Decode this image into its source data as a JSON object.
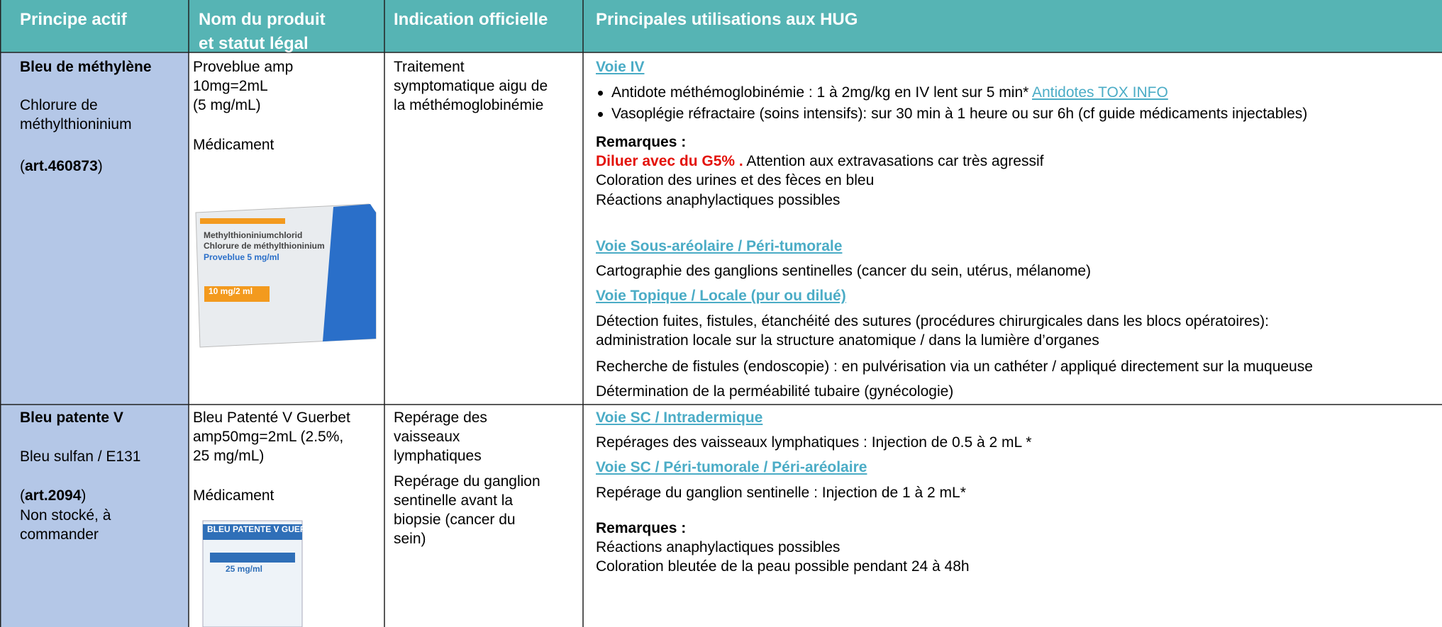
{
  "header": [
    "Principe actif",
    [
      "Nom du produit",
      "et statut légal"
    ],
    "Indication officielle",
    "Principales utilisations aux HUG"
  ],
  "rows": [
    {
      "active": {
        "name": "Bleu de méthylène",
        "synonym": [
          "Chlorure de",
          "méthylthioninium"
        ],
        "article": {
          "open": "(",
          "code": "art.460873",
          "close": ")"
        }
      },
      "product": {
        "lines": [
          "Proveblue amp",
          "10mg=2mL",
          "(5 mg/mL)"
        ],
        "status": "Médicament",
        "image_texts": [
          "Methylthioniniumchlorid",
          "Chlorure de méthylthioninium",
          "Proveblue 5 mg/ml",
          "10 mg/2 ml"
        ]
      },
      "indication": [
        [
          "Traitement",
          "symptomatique aigu de",
          "la méthémoglobinémie"
        ]
      ],
      "uses": {
        "iv": {
          "heading": "Voie IV",
          "bullets": [
            {
              "text": "Antidote méthémoglobinémie : 1 à 2mg/kg en IV lent sur 5 min* ",
              "link": "Antidotes TOX INFO"
            },
            {
              "text": "Vasoplégie réfractaire (soins intensifs): sur 30 min à 1 heure ou sur 6h (cf guide médicaments injectables)"
            }
          ]
        },
        "remarks": {
          "title": "Remarques :",
          "warning": "Diluer avec du G5% .",
          "warning_rest": " Attention aux extravasations car très agressif",
          "lines": [
            "Coloration des urines et des fèces en bleu",
            "Réactions anaphylactiques possibles"
          ]
        },
        "subareolar": {
          "heading": "Voie Sous-aréolaire / Péri-tumorale",
          "text": "Cartographie des ganglions sentinelles (cancer du sein, utérus, mélanome)"
        },
        "topical": {
          "heading": "Voie Topique / Locale (pur ou dilué)",
          "lines": [
            "Détection fuites, fistules, étanchéité des sutures (procédures chirurgicales dans les blocs opératoires):",
            "administration locale sur la structure anatomique / dans la lumière d’organes",
            "Recherche de fistules (endoscopie) : en pulvérisation via un cathéter / appliqué directement sur la muqueuse",
            "Détermination de la perméabilité tubaire (gynécologie)"
          ]
        }
      }
    },
    {
      "active": {
        "name": "Bleu patente V",
        "synonym": [
          "Bleu sulfan / E131"
        ],
        "article": {
          "open": "(",
          "code": "art.2094",
          "close": ")"
        },
        "note": [
          "Non stocké, à",
          "commander"
        ]
      },
      "product": {
        "lines": [
          "Bleu Patenté V Guerbet",
          "amp50mg=2mL (2.5%,",
          "25 mg/mL)"
        ],
        "status": "Médicament",
        "image_texts": [
          "BLEU PATENTE V GUERBET",
          "25 mg/ml"
        ]
      },
      "indication": [
        [
          "Repérage des",
          "vaisseaux",
          "lymphatiques"
        ],
        [
          "Repérage du ganglion",
          "sentinelle avant la",
          "biopsie (cancer du",
          "sein)"
        ]
      ],
      "uses": {
        "sc": {
          "heading": "Voie SC / Intradermique",
          "text": "Repérages des vaisseaux lymphatiques : Injection de 0.5 à 2 mL *"
        },
        "sc_peri": {
          "heading": "Voie SC / Péri-tumorale / Péri-aréolaire",
          "text": "Repérage du ganglion sentinelle : Injection de 1 à 2 mL*"
        },
        "remarks": {
          "title": "Remarques :",
          "lines": [
            "Réactions anaphylactiques possibles",
            "Coloration bleutée de la peau possible pendant 24 à 48h"
          ]
        }
      }
    }
  ]
}
